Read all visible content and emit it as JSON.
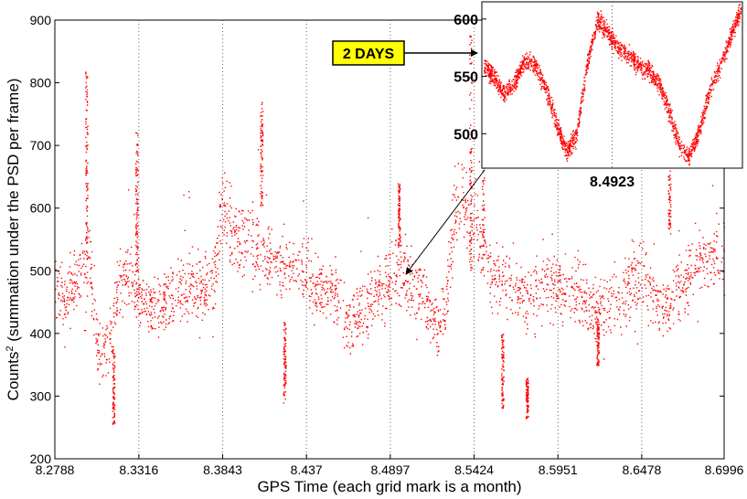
{
  "chart_data": {
    "type": "scatter",
    "xlabel": "GPS Time (each grid mark is a month)",
    "ylabel_main": "Counts",
    "ylabel_sup": "2",
    "ylabel_rest": " (summation under the PSD per frame)",
    "x_tick_labels": [
      "8.2788",
      "8.3316",
      "8.3843",
      "8.437",
      "8.4897",
      "8.5424",
      "8.5951",
      "8.6478",
      "8.6996"
    ],
    "x_ticks": [
      8.2788,
      8.3316,
      8.3843,
      8.437,
      8.4897,
      8.5424,
      8.5951,
      8.6478,
      8.6996
    ],
    "xlim": [
      8.2788,
      8.6996
    ],
    "x_scale_note": "x10^8 GPS seconds",
    "y_ticks": [
      200,
      300,
      400,
      500,
      600,
      700,
      800,
      900
    ],
    "ylim": [
      200,
      900
    ],
    "grid": "vertical dotted at x ticks",
    "marker_color": "#ff0000",
    "envelope": {
      "x": [
        8.2788,
        8.286,
        8.293,
        8.3,
        8.305,
        8.312,
        8.318,
        8.323,
        8.329,
        8.335,
        8.342,
        8.35,
        8.358,
        8.366,
        8.373,
        8.38,
        8.384,
        8.39,
        8.398,
        8.407,
        8.415,
        8.421,
        8.428,
        8.434,
        8.44,
        8.447,
        8.455,
        8.462,
        8.47,
        8.477,
        8.484,
        8.49,
        8.497,
        8.503,
        8.51,
        8.517,
        8.524,
        8.53,
        8.536,
        8.541,
        8.546,
        8.553,
        8.56,
        8.567,
        8.574,
        8.581,
        8.588,
        8.595,
        8.602,
        8.61,
        8.618,
        8.626,
        8.634,
        8.641,
        8.648,
        8.656,
        8.664,
        8.672,
        8.68,
        8.688,
        8.6996
      ],
      "mean": [
        475,
        455,
        490,
        530,
        380,
        365,
        475,
        500,
        460,
        450,
        440,
        455,
        470,
        480,
        475,
        500,
        610,
        560,
        550,
        530,
        520,
        510,
        515,
        505,
        480,
        470,
        460,
        420,
        430,
        455,
        470,
        490,
        495,
        475,
        470,
        410,
        440,
        600,
        620,
        590,
        540,
        480,
        490,
        470,
        450,
        465,
        480,
        470,
        470,
        465,
        430,
        445,
        460,
        470,
        500,
        455,
        440,
        480,
        505,
        520,
        520
      ],
      "spread": [
        45,
        40,
        55,
        60,
        45,
        40,
        45,
        55,
        50,
        45,
        45,
        45,
        50,
        55,
        50,
        55,
        55,
        55,
        55,
        55,
        50,
        50,
        50,
        50,
        50,
        45,
        45,
        50,
        45,
        50,
        50,
        55,
        55,
        55,
        50,
        40,
        45,
        60,
        60,
        55,
        55,
        55,
        55,
        50,
        50,
        50,
        55,
        50,
        55,
        50,
        45,
        50,
        55,
        55,
        55,
        50,
        50,
        55,
        55,
        50,
        45
      ]
    },
    "inset": {
      "callout_label": "2 DAYS",
      "x_tick_label": "8.4923",
      "y_ticks": [
        500,
        550,
        600
      ],
      "ylim": [
        470,
        615
      ],
      "curve_x": [
        0,
        0.04,
        0.08,
        0.12,
        0.16,
        0.2,
        0.24,
        0.28,
        0.32,
        0.36,
        0.4,
        0.44,
        0.48,
        0.52,
        0.56,
        0.6,
        0.64,
        0.68,
        0.72,
        0.76,
        0.8,
        0.84,
        0.88,
        0.92,
        0.96,
        1.0
      ],
      "curve_y": [
        560,
        548,
        535,
        545,
        565,
        560,
        540,
        510,
        485,
        500,
        560,
        600,
        590,
        575,
        570,
        560,
        555,
        545,
        520,
        490,
        480,
        505,
        540,
        560,
        585,
        610
      ]
    }
  }
}
